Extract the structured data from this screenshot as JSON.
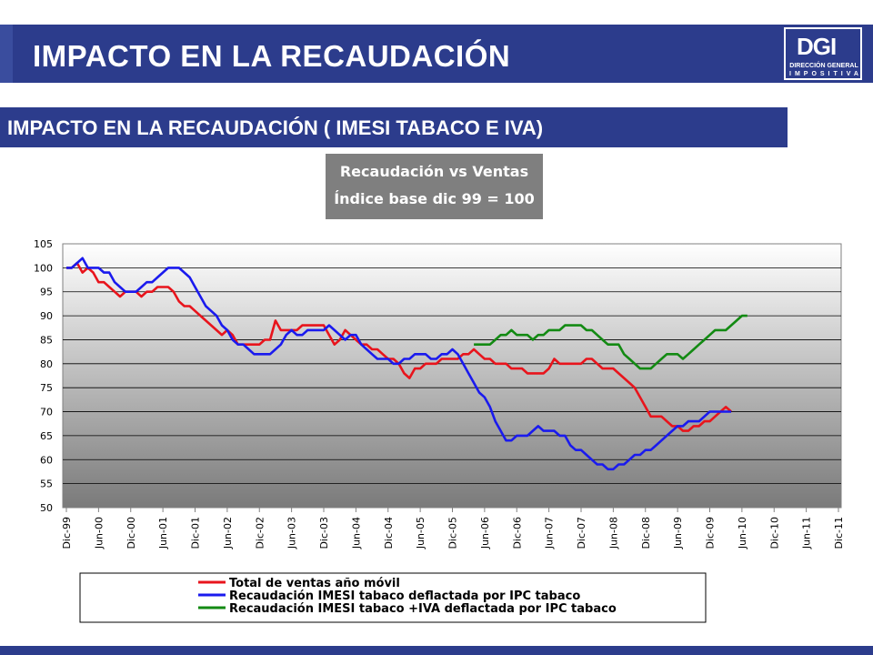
{
  "header": {
    "title": "IMPACTO EN LA RECAUDACIÓN",
    "subtitle": "IMPACTO EN LA RECAUDACIÓN ( IMESI TABACO E IVA)"
  },
  "logo": {
    "mark": "DGI",
    "line1": "DIRECCIÓN GENERAL",
    "line2": "IMPOSITIVA"
  },
  "colors": {
    "brand_blue": "#2c3c8c",
    "series_red": "#e8141c",
    "series_blue": "#1a1aee",
    "series_green": "#138a13"
  },
  "chart_data": {
    "type": "line",
    "title_line1": "Recaudación vs Ventas",
    "title_line2": "Índice base dic 99 = 100",
    "xlabel": "",
    "ylabel": "",
    "ylim": [
      50,
      105
    ],
    "y_ticks": [
      50,
      55,
      60,
      65,
      70,
      75,
      80,
      85,
      90,
      95,
      100,
      105
    ],
    "x_ticks": [
      "Dic-99",
      "Jun-00",
      "Dic-00",
      "Jun-01",
      "Dic-01",
      "Jun-02",
      "Dic-02",
      "Jun-03",
      "Dic-03",
      "Jun-04",
      "Dic-04",
      "Jun-05",
      "Dic-05",
      "Jun-06",
      "Dic-06",
      "Jun-07",
      "Dic-07",
      "Jun-08",
      "Dic-08",
      "Jun-09",
      "Dic-09",
      "Jun-10",
      "Dic-10",
      "Jun-11",
      "Dic-11"
    ],
    "x_range": [
      "Dic-99",
      "Dic-11"
    ],
    "grid": true,
    "legend_position": "bottom",
    "series": [
      {
        "name": "Total de ventas año móvil",
        "color": "#e8141c",
        "values": [
          100,
          100,
          101,
          99,
          100,
          99,
          97,
          97,
          96,
          95,
          94,
          95,
          95,
          95,
          94,
          95,
          95,
          96,
          96,
          96,
          95,
          93,
          92,
          92,
          91,
          90,
          89,
          88,
          87,
          86,
          87,
          86,
          84,
          84,
          84,
          84,
          84,
          85,
          85,
          89,
          87,
          87,
          87,
          87,
          88,
          88,
          88,
          88,
          88,
          86,
          84,
          85,
          87,
          86,
          85,
          84,
          84,
          83,
          83,
          82,
          81,
          81,
          80,
          78,
          77,
          79,
          79,
          80,
          80,
          80,
          81,
          81,
          81,
          81,
          82,
          82,
          83,
          82,
          81,
          81,
          80,
          80,
          80,
          79,
          79,
          79,
          78,
          78,
          78,
          78,
          79,
          81,
          80,
          80,
          80,
          80,
          80,
          81,
          81,
          80,
          79,
          79,
          79,
          78,
          77,
          76,
          75,
          73,
          71,
          69,
          69,
          69,
          68,
          67,
          67,
          66,
          66,
          67,
          67,
          68,
          68,
          69,
          70,
          71,
          70
        ]
      },
      {
        "name": "Recaudación IMESI tabaco deflactada por IPC tabaco",
        "color": "#1a1aee",
        "values": [
          100,
          100,
          101,
          102,
          100,
          100,
          100,
          99,
          99,
          97,
          96,
          95,
          95,
          95,
          96,
          97,
          97,
          98,
          99,
          100,
          100,
          100,
          99,
          98,
          96,
          94,
          92,
          91,
          90,
          88,
          87,
          85,
          84,
          84,
          83,
          82,
          82,
          82,
          82,
          83,
          84,
          86,
          87,
          86,
          86,
          87,
          87,
          87,
          87,
          88,
          87,
          86,
          85,
          86,
          86,
          84,
          83,
          82,
          81,
          81,
          81,
          80,
          80,
          81,
          81,
          82,
          82,
          82,
          81,
          81,
          82,
          82,
          83,
          82,
          80,
          78,
          76,
          74,
          73,
          71,
          68,
          66,
          64,
          64,
          65,
          65,
          65,
          66,
          67,
          66,
          66,
          66,
          65,
          65,
          63,
          62,
          62,
          61,
          60,
          59,
          59,
          58,
          58,
          59,
          59,
          60,
          61,
          61,
          62,
          62,
          63,
          64,
          65,
          66,
          67,
          67,
          68,
          68,
          68,
          69,
          70,
          70,
          70,
          70,
          70
        ]
      },
      {
        "name": "Recaudación IMESI tabaco +IVA deflactada por IPC tabaco",
        "color": "#138a13",
        "x_start_index": 76,
        "values": [
          84,
          84,
          84,
          84,
          85,
          86,
          86,
          87,
          86,
          86,
          86,
          85,
          86,
          86,
          87,
          87,
          87,
          88,
          88,
          88,
          88,
          87,
          87,
          86,
          85,
          84,
          84,
          84,
          82,
          81,
          80,
          79,
          79,
          79,
          80,
          81,
          82,
          82,
          82,
          81,
          82,
          83,
          84,
          85,
          86,
          87,
          87,
          87,
          88,
          89,
          90,
          90
        ]
      }
    ]
  }
}
